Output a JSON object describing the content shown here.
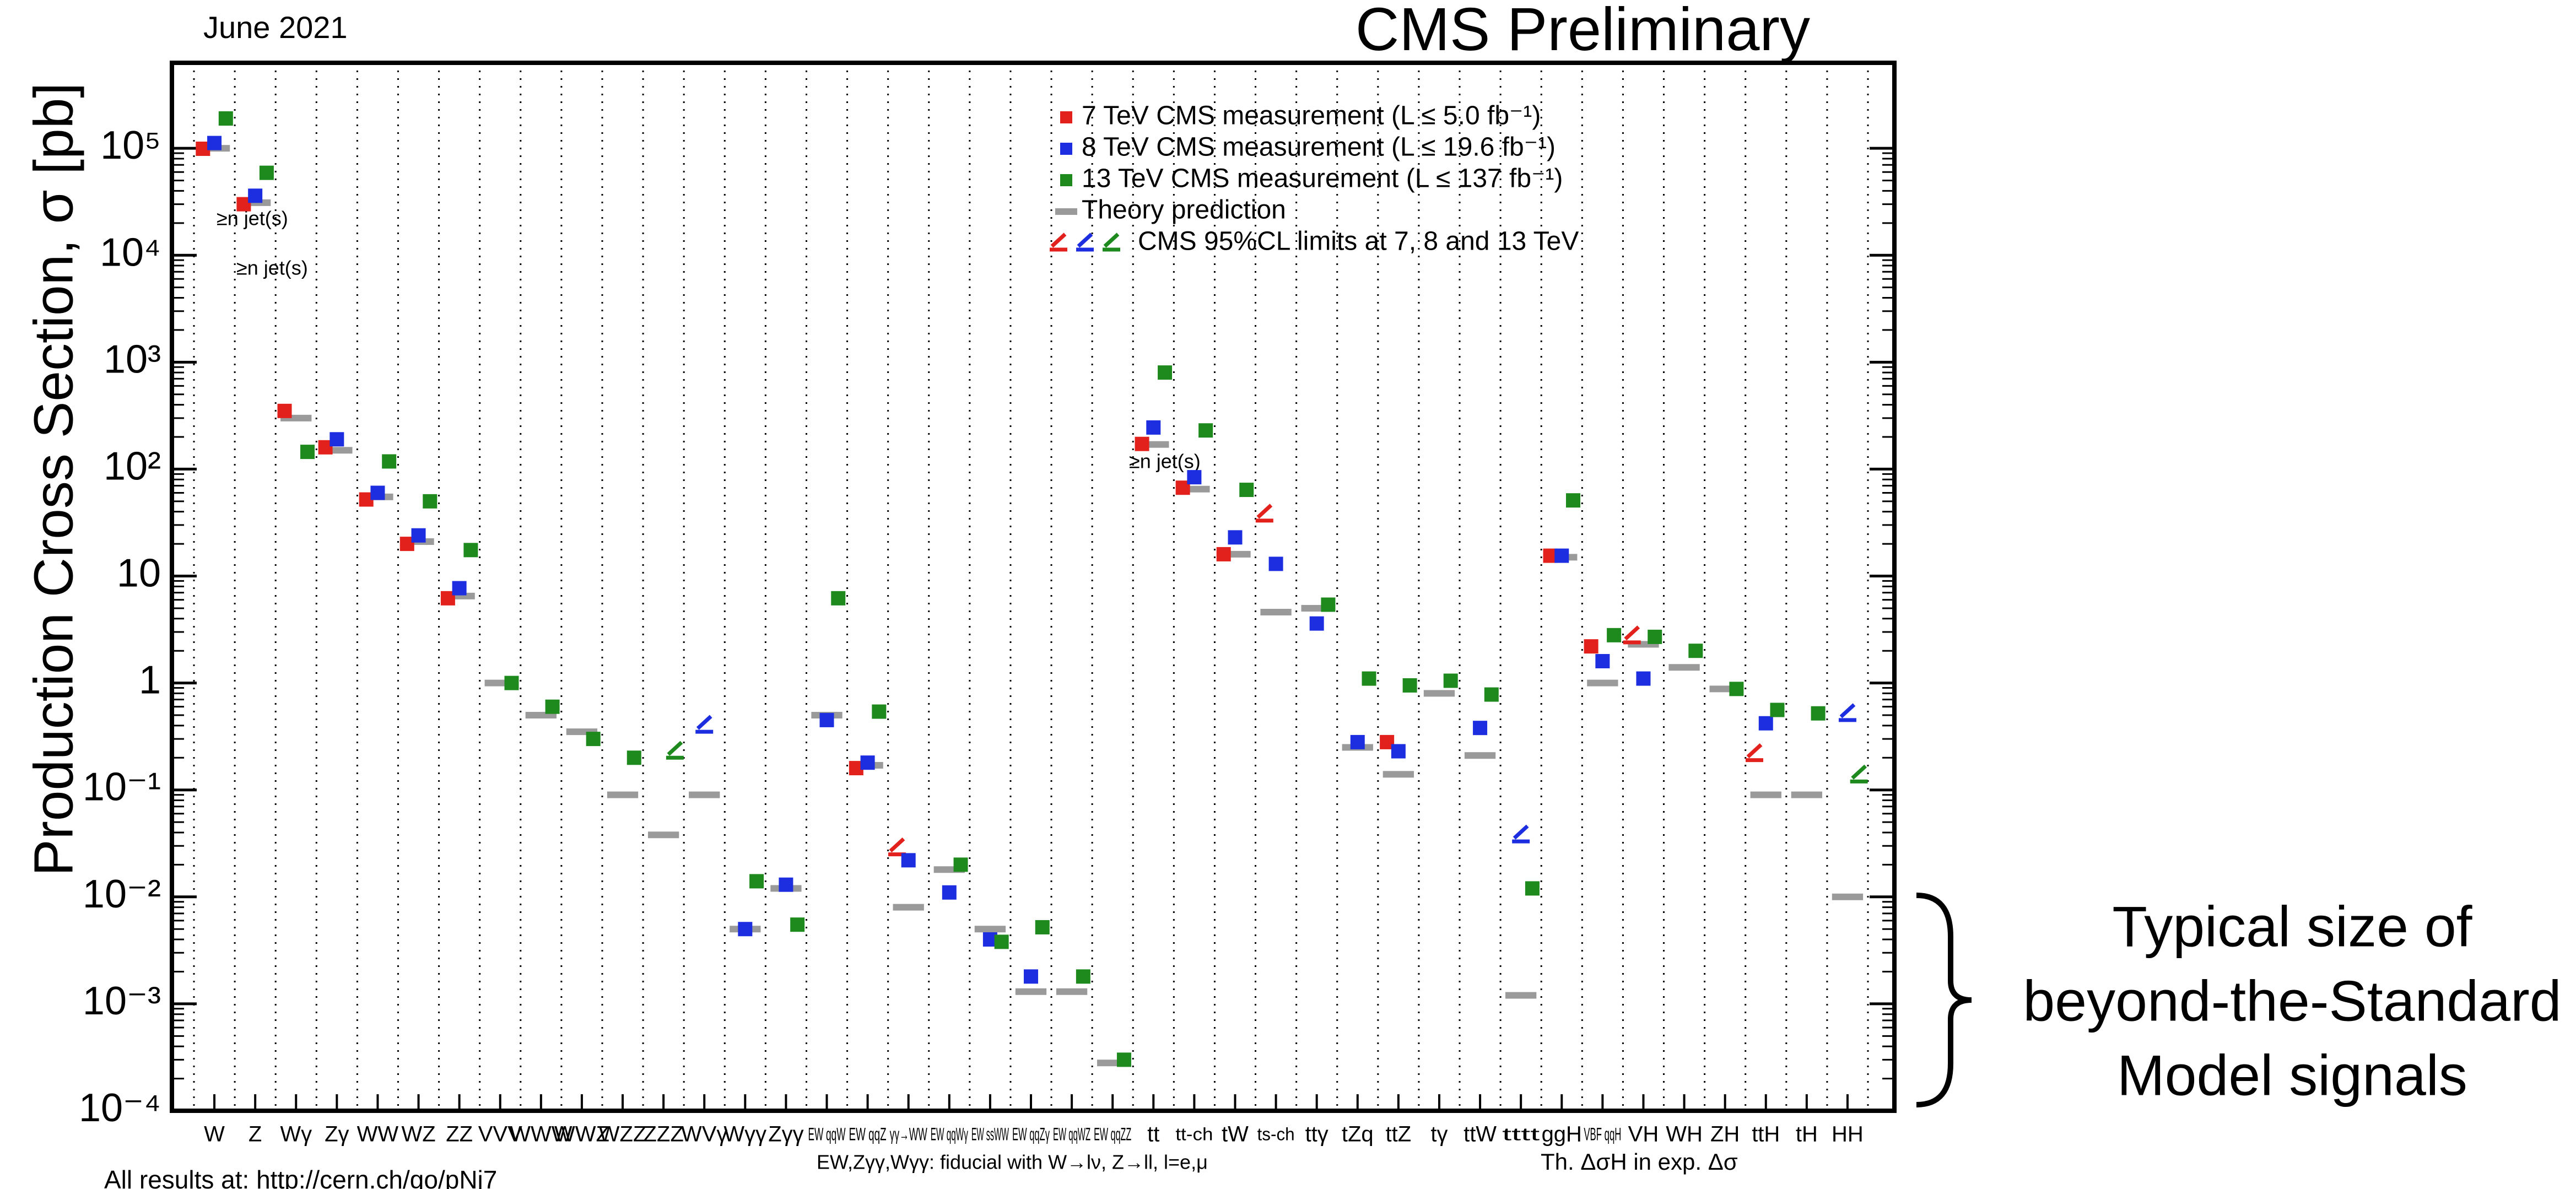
{
  "chart_data": {
    "type": "scatter",
    "title": "CMS Preliminary",
    "date": "June 2021",
    "ylabel": "Production Cross Section,  σ [pb]",
    "footnote": "All results at: http://cern.ch/go/pNj7",
    "fiducial_note": "EW,Zγγ,Wγγ: fiducial with W→lν, Z→ll, l=e,μ",
    "theory_note": "Th. ΔσH in exp. Δσ",
    "jet_labels": [
      "≥n jet(s)",
      "≥n jet(s)",
      "≥n jet(s)"
    ],
    "annotation_lines": [
      "Typical size of",
      "beyond-the-Standard",
      "Model signals"
    ],
    "log_y": true,
    "ylim": [
      0.0001,
      630000
    ],
    "yticks": [
      {
        "value": 0.0001,
        "label": "10⁻⁴"
      },
      {
        "value": 0.001,
        "label": "10⁻³"
      },
      {
        "value": 0.01,
        "label": "10⁻²"
      },
      {
        "value": 0.1,
        "label": "10⁻¹"
      },
      1,
      10,
      {
        "value": 100,
        "label": "10²"
      },
      {
        "value": 1000,
        "label": "10³"
      },
      {
        "value": 10000,
        "label": "10⁴"
      },
      {
        "value": 100000,
        "label": "10⁵"
      }
    ],
    "categories": [
      "W",
      "Z",
      "Wγ",
      "Zγ",
      "WW",
      "WZ",
      "ZZ",
      "VVV",
      "WWW",
      "WWZ",
      "WZZ",
      "ZZZ",
      "WVγ",
      "Wγγ",
      "Zγγ",
      "EW qqW",
      "EW qqZ",
      "γγ→WW",
      "EW qqWγ",
      "EW ssWW",
      "EW qqZγ",
      "EW qqWZ",
      "EW qqZZ",
      "tt",
      "tt-ch",
      "tW",
      "ts-ch",
      "ttγ",
      "tZq",
      "ttZ",
      "tγ",
      "ttW",
      "tttt",
      "ggH",
      "VBF qqH",
      "VH",
      "WH",
      "ZH",
      "ttH",
      "tH",
      "HH"
    ],
    "series": [
      {
        "name": "7 TeV CMS measurement (L ≤ 5.0 fb⁻¹)",
        "color": "#e3211c",
        "values": [
          99000,
          30000,
          350,
          160,
          52,
          20,
          6.2,
          null,
          null,
          null,
          null,
          null,
          null,
          null,
          null,
          null,
          0.16,
          null,
          null,
          null,
          null,
          null,
          null,
          172,
          67,
          16,
          null,
          null,
          null,
          0.28,
          null,
          null,
          null,
          15.5,
          2.2,
          null,
          null,
          null,
          null,
          null,
          null
        ],
        "limits": [
          null,
          null,
          null,
          null,
          null,
          null,
          null,
          null,
          null,
          null,
          null,
          null,
          null,
          null,
          null,
          null,
          null,
          0.025,
          null,
          null,
          null,
          null,
          null,
          null,
          null,
          null,
          33,
          null,
          null,
          null,
          null,
          null,
          null,
          null,
          null,
          2.4,
          null,
          null,
          0.19,
          null,
          null
        ]
      },
      {
        "name": "8 TeV CMS measurement (L ≤ 19.6 fb⁻¹)",
        "color": "#1c2ee0",
        "values": [
          112000,
          36000,
          null,
          190,
          60,
          24,
          7.7,
          null,
          null,
          null,
          null,
          null,
          null,
          0.005,
          0.013,
          0.45,
          0.18,
          0.022,
          0.011,
          0.004,
          0.0018,
          null,
          null,
          245,
          84,
          23,
          13,
          3.6,
          0.28,
          0.23,
          null,
          0.38,
          null,
          15.5,
          1.6,
          1.1,
          null,
          null,
          0.42,
          null,
          null
        ],
        "limits": [
          null,
          null,
          null,
          null,
          null,
          null,
          null,
          null,
          null,
          null,
          null,
          null,
          0.35,
          null,
          null,
          null,
          null,
          null,
          null,
          null,
          null,
          null,
          null,
          null,
          null,
          null,
          null,
          null,
          null,
          null,
          null,
          null,
          0.033,
          null,
          null,
          null,
          null,
          null,
          null,
          null,
          0.45
        ]
      },
      {
        "name": "13 TeV CMS measurement (L ≤ 137 fb⁻¹)",
        "color": "#1e8a1e",
        "values": [
          190000,
          59000,
          145,
          null,
          118,
          50,
          17.5,
          1.0,
          0.6,
          0.3,
          0.2,
          null,
          null,
          0.014,
          0.0055,
          6.2,
          0.54,
          null,
          0.02,
          0.0038,
          0.0052,
          0.0018,
          0.0003,
          800,
          230,
          64,
          null,
          5.4,
          1.1,
          0.95,
          1.05,
          0.78,
          0.012,
          51,
          2.8,
          2.7,
          2.0,
          0.88,
          0.56,
          0.52,
          null
        ],
        "limits": [
          null,
          null,
          null,
          null,
          null,
          null,
          null,
          null,
          null,
          null,
          null,
          0.2,
          null,
          null,
          null,
          null,
          null,
          null,
          null,
          null,
          null,
          null,
          null,
          null,
          null,
          null,
          null,
          null,
          null,
          null,
          null,
          null,
          null,
          null,
          null,
          null,
          null,
          null,
          null,
          null,
          0.12
        ]
      }
    ],
    "theory": {
      "name": "Theory prediction",
      "color": "#9a9a9a",
      "values": [
        100000,
        31000,
        300,
        150,
        55,
        21,
        6.5,
        1.0,
        0.5,
        0.35,
        0.09,
        0.038,
        0.09,
        0.005,
        0.012,
        0.5,
        0.17,
        0.008,
        0.018,
        0.005,
        0.0013,
        0.0013,
        0.00028,
        170,
        65,
        16,
        4.6,
        5,
        0.25,
        0.14,
        0.8,
        0.21,
        0.0012,
        15,
        1.0,
        2.3,
        1.4,
        0.88,
        0.09,
        0.09,
        0.01
      ]
    },
    "limits_label": "CMS 95%CL limits at 7, 8 and 13 TeV"
  }
}
